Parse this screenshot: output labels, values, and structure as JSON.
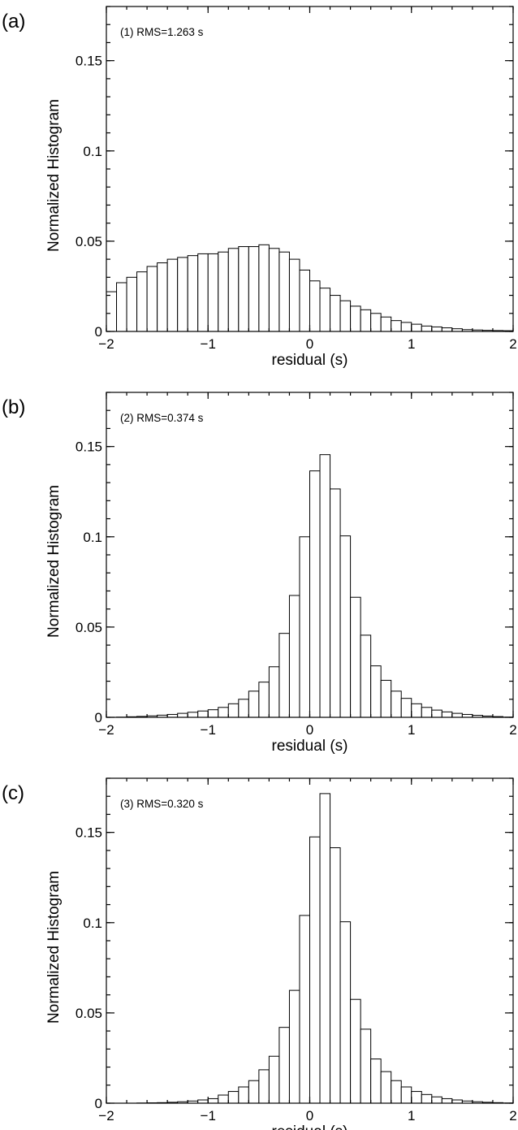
{
  "chart_data": [
    {
      "type": "bar",
      "panel_label": "(a)",
      "annotation": "(1) RMS=1.263 s",
      "xlabel": "residual (s)",
      "ylabel": "Normalized Histogram",
      "xlim": [
        -2,
        2
      ],
      "ylim": [
        0,
        0.18
      ],
      "x_ticks": [
        "−2",
        "−1",
        "0",
        "1",
        "2"
      ],
      "y_ticks": [
        "0",
        "0.05",
        "0.1",
        "0.15"
      ],
      "bin_width": 0.1,
      "bin_starts": [
        -2.0,
        -1.9,
        -1.8,
        -1.7,
        -1.6,
        -1.5,
        -1.4,
        -1.3,
        -1.2,
        -1.1,
        -1.0,
        -0.9,
        -0.8,
        -0.7,
        -0.6,
        -0.5,
        -0.4,
        -0.3,
        -0.2,
        -0.1,
        0.0,
        0.1,
        0.2,
        0.3,
        0.4,
        0.5,
        0.6,
        0.7,
        0.8,
        0.9,
        1.0,
        1.1,
        1.2,
        1.3,
        1.4,
        1.5,
        1.6,
        1.7,
        1.8,
        1.9
      ],
      "values": [
        0.022,
        0.027,
        0.03,
        0.033,
        0.036,
        0.038,
        0.04,
        0.041,
        0.042,
        0.043,
        0.043,
        0.044,
        0.046,
        0.047,
        0.047,
        0.048,
        0.046,
        0.044,
        0.04,
        0.034,
        0.028,
        0.024,
        0.02,
        0.017,
        0.014,
        0.012,
        0.01,
        0.008,
        0.006,
        0.005,
        0.004,
        0.003,
        0.0025,
        0.002,
        0.0015,
        0.001,
        0.0008,
        0.0006,
        0.0005,
        0.0004
      ]
    },
    {
      "type": "bar",
      "panel_label": "(b)",
      "annotation": "(2) RMS=0.374 s",
      "xlabel": "residual (s)",
      "ylabel": "Normalized Histogram",
      "xlim": [
        -2,
        2
      ],
      "ylim": [
        0,
        0.18
      ],
      "x_ticks": [
        "−2",
        "−1",
        "0",
        "1",
        "2"
      ],
      "y_ticks": [
        "0",
        "0.05",
        "0.1",
        "0.15"
      ],
      "bin_width": 0.1,
      "bin_starts": [
        -2.0,
        -1.9,
        -1.8,
        -1.7,
        -1.6,
        -1.5,
        -1.4,
        -1.3,
        -1.2,
        -1.1,
        -1.0,
        -0.9,
        -0.8,
        -0.7,
        -0.6,
        -0.5,
        -0.4,
        -0.3,
        -0.2,
        -0.1,
        0.0,
        0.1,
        0.2,
        0.3,
        0.4,
        0.5,
        0.6,
        0.7,
        0.8,
        0.9,
        1.0,
        1.1,
        1.2,
        1.3,
        1.4,
        1.5,
        1.6,
        1.7,
        1.8,
        1.9
      ],
      "values": [
        0.0,
        0.0001,
        0.0003,
        0.0005,
        0.0008,
        0.0012,
        0.0016,
        0.0022,
        0.0028,
        0.0035,
        0.0042,
        0.0055,
        0.0075,
        0.01,
        0.0145,
        0.0195,
        0.028,
        0.0465,
        0.0675,
        0.1,
        0.1365,
        0.1455,
        0.1265,
        0.1005,
        0.0665,
        0.0455,
        0.0285,
        0.0205,
        0.0145,
        0.0105,
        0.0075,
        0.0055,
        0.004,
        0.003,
        0.0022,
        0.0016,
        0.0011,
        0.0007,
        0.0004,
        0.0001
      ]
    },
    {
      "type": "bar",
      "panel_label": "(c)",
      "annotation": "(3) RMS=0.320 s",
      "xlabel": "residual (s)",
      "ylabel": "Normalized Histogram",
      "xlim": [
        -2,
        2
      ],
      "ylim": [
        0,
        0.18
      ],
      "x_ticks": [
        "−2",
        "−1",
        "0",
        "1",
        "2"
      ],
      "y_ticks": [
        "0",
        "0.05",
        "0.1",
        "0.15"
      ],
      "bin_width": 0.1,
      "bin_starts": [
        -2.0,
        -1.9,
        -1.8,
        -1.7,
        -1.6,
        -1.5,
        -1.4,
        -1.3,
        -1.2,
        -1.1,
        -1.0,
        -0.9,
        -0.8,
        -0.7,
        -0.6,
        -0.5,
        -0.4,
        -0.3,
        -0.2,
        -0.1,
        0.0,
        0.1,
        0.2,
        0.3,
        0.4,
        0.5,
        0.6,
        0.7,
        0.8,
        0.9,
        1.0,
        1.1,
        1.2,
        1.3,
        1.4,
        1.5,
        1.6,
        1.7,
        1.8,
        1.9
      ],
      "values": [
        0.0,
        0.0,
        0.0,
        0.0001,
        0.0002,
        0.0003,
        0.0005,
        0.0008,
        0.0012,
        0.0018,
        0.0025,
        0.0045,
        0.0065,
        0.009,
        0.0125,
        0.0185,
        0.026,
        0.042,
        0.0625,
        0.104,
        0.1475,
        0.1715,
        0.1415,
        0.1005,
        0.0575,
        0.041,
        0.0245,
        0.0175,
        0.0125,
        0.009,
        0.0065,
        0.0048,
        0.0035,
        0.0025,
        0.0018,
        0.0012,
        0.0008,
        0.0005,
        0.0003,
        0.0001
      ]
    }
  ]
}
